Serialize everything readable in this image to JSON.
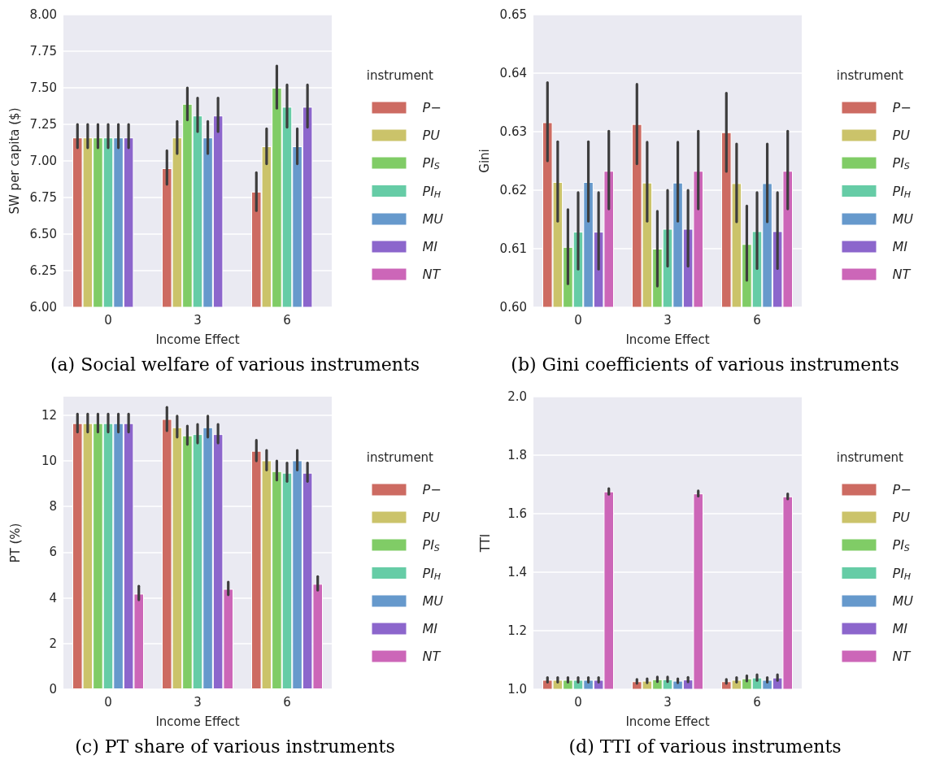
{
  "chart_data": [
    {
      "type": "bar",
      "title": "(a) Social welfare of various instruments",
      "xlabel": "Income Effect",
      "ylabel": "SW per capita ($)",
      "legend_title": "instrument",
      "legend": "right",
      "grid": "y",
      "categories": [
        "0",
        "3",
        "6"
      ],
      "ylim": [
        6,
        8
      ],
      "yticks": [
        {
          "value": 6,
          "label": "6.00"
        },
        {
          "value": 6.25,
          "label": "6.25"
        },
        {
          "value": 6.5,
          "label": "6.50"
        },
        {
          "value": 6.75,
          "label": "6.75"
        },
        {
          "value": 7,
          "label": "7.00"
        },
        {
          "value": 7.25,
          "label": "7.25"
        },
        {
          "value": 7.5,
          "label": "7.50"
        },
        {
          "value": 7.75,
          "label": "7.75"
        },
        {
          "value": 8,
          "label": "8.00"
        }
      ],
      "series": [
        {
          "name": "P−",
          "color": "#cd6b62",
          "values": [
            7.16,
            6.95,
            6.79
          ],
          "errors": [
            [
              7.09,
              7.25
            ],
            [
              6.84,
              7.07
            ],
            [
              6.66,
              6.92
            ]
          ]
        },
        {
          "name": "PU",
          "color": "#cbc36a",
          "values": [
            7.16,
            7.16,
            7.1
          ],
          "errors": [
            [
              7.09,
              7.25
            ],
            [
              7.05,
              7.27
            ],
            [
              6.98,
              7.22
            ]
          ]
        },
        {
          "name": "PI$_{S}$",
          "color": "#80cc66",
          "values": [
            7.16,
            7.39,
            7.5
          ],
          "errors": [
            [
              7.09,
              7.25
            ],
            [
              7.28,
              7.5
            ],
            [
              7.36,
              7.65
            ]
          ]
        },
        {
          "name": "PI$_{H}$",
          "color": "#66cca6",
          "values": [
            7.16,
            7.31,
            7.37
          ],
          "errors": [
            [
              7.09,
              7.25
            ],
            [
              7.2,
              7.43
            ],
            [
              7.23,
              7.52
            ]
          ]
        },
        {
          "name": "MU",
          "color": "#6699cc",
          "values": [
            7.16,
            7.16,
            7.1
          ],
          "errors": [
            [
              7.09,
              7.25
            ],
            [
              7.05,
              7.27
            ],
            [
              6.98,
              7.22
            ]
          ]
        },
        {
          "name": "MI",
          "color": "#8c66cc",
          "values": [
            7.16,
            7.31,
            7.37
          ],
          "errors": [
            [
              7.09,
              7.25
            ],
            [
              7.2,
              7.43
            ],
            [
              7.23,
              7.52
            ]
          ]
        },
        {
          "name": "NT",
          "color": "#cc66b8",
          "values": [
            null,
            null,
            null
          ],
          "errors": [
            null,
            null,
            null
          ]
        }
      ]
    },
    {
      "type": "bar",
      "title": "(b) Gini coefficients of various instruments",
      "xlabel": "Income Effect",
      "ylabel": "Gini",
      "legend_title": "instrument",
      "legend": "right",
      "grid": "y",
      "categories": [
        "0",
        "3",
        "6"
      ],
      "ylim": [
        0.6,
        0.65
      ],
      "yticks": [
        {
          "value": 0.6,
          "label": "0.60"
        },
        0.61,
        0.62,
        0.63,
        0.64,
        0.65
      ],
      "series": [
        {
          "name": "P−",
          "color": "#cd6b62",
          "values": [
            0.6316,
            0.6313,
            0.6299
          ],
          "errors": [
            [
              0.625,
              0.6384
            ],
            [
              0.6245,
              0.6381
            ],
            [
              0.6232,
              0.6366
            ]
          ]
        },
        {
          "name": "PU",
          "color": "#cbc36a",
          "values": [
            0.6214,
            0.6213,
            0.6212
          ],
          "errors": [
            [
              0.6147,
              0.6283
            ],
            [
              0.6147,
              0.6282
            ],
            [
              0.6146,
              0.6279
            ]
          ]
        },
        {
          "name": "PI$_{S}$",
          "color": "#80cc66",
          "values": [
            0.6103,
            0.61,
            0.6108
          ],
          "errors": [
            [
              0.604,
              0.6167
            ],
            [
              0.6036,
              0.6164
            ],
            [
              0.6046,
              0.6173
            ]
          ]
        },
        {
          "name": "PI$_{H}$",
          "color": "#66cca6",
          "values": [
            0.6129,
            0.6134,
            0.613
          ],
          "errors": [
            [
              0.6065,
              0.6196
            ],
            [
              0.607,
              0.62
            ],
            [
              0.6066,
              0.6196
            ]
          ]
        },
        {
          "name": "MU",
          "color": "#6699cc",
          "values": [
            0.6214,
            0.6213,
            0.6212
          ],
          "errors": [
            [
              0.6147,
              0.6283
            ],
            [
              0.6147,
              0.6282
            ],
            [
              0.6146,
              0.6279
            ]
          ]
        },
        {
          "name": "MI",
          "color": "#8c66cc",
          "values": [
            0.6129,
            0.6134,
            0.613
          ],
          "errors": [
            [
              0.6065,
              0.6196
            ],
            [
              0.607,
              0.62
            ],
            [
              0.6066,
              0.6196
            ]
          ]
        },
        {
          "name": "NT",
          "color": "#cc66b8",
          "values": [
            0.6233,
            0.6233,
            0.6233
          ],
          "errors": [
            [
              0.6168,
              0.6301
            ],
            [
              0.6168,
              0.6301
            ],
            [
              0.6168,
              0.6301
            ]
          ]
        }
      ]
    },
    {
      "type": "bar",
      "title": "(c) PT share of various instruments",
      "xlabel": "Income Effect",
      "ylabel": "PT (%)",
      "legend_title": "instrument",
      "legend": "right",
      "grid": "y",
      "categories": [
        "0",
        "3",
        "6"
      ],
      "ylim": [
        0,
        12.8
      ],
      "yticks": [
        0,
        2,
        4,
        6,
        8,
        10,
        12
      ],
      "series": [
        {
          "name": "P−",
          "color": "#cd6b62",
          "values": [
            11.64,
            11.82,
            10.43
          ],
          "errors": [
            [
              11.25,
              12.04
            ],
            [
              11.31,
              12.33
            ],
            [
              9.99,
              10.89
            ]
          ]
        },
        {
          "name": "PU",
          "color": "#cbc36a",
          "values": [
            11.64,
            11.46,
            10.01
          ],
          "errors": [
            [
              11.25,
              12.04
            ],
            [
              11.03,
              11.95
            ],
            [
              9.59,
              10.45
            ]
          ]
        },
        {
          "name": "PI$_{S}$",
          "color": "#80cc66",
          "values": [
            11.64,
            11.1,
            9.54
          ],
          "errors": [
            [
              11.25,
              12.04
            ],
            [
              10.71,
              11.52
            ],
            [
              9.15,
              9.99
            ]
          ]
        },
        {
          "name": "PI$_{H}$",
          "color": "#66cca6",
          "values": [
            11.64,
            11.16,
            9.47
          ],
          "errors": [
            [
              11.25,
              12.04
            ],
            [
              10.77,
              11.59
            ],
            [
              9.09,
              9.9
            ]
          ]
        },
        {
          "name": "MU",
          "color": "#6699cc",
          "values": [
            11.64,
            11.46,
            10.01
          ],
          "errors": [
            [
              11.25,
              12.04
            ],
            [
              11.03,
              11.95
            ],
            [
              9.59,
              10.45
            ]
          ]
        },
        {
          "name": "MI",
          "color": "#8c66cc",
          "values": [
            11.64,
            11.16,
            9.47
          ],
          "errors": [
            [
              11.25,
              12.04
            ],
            [
              10.77,
              11.59
            ],
            [
              9.09,
              9.9
            ]
          ]
        },
        {
          "name": "NT",
          "color": "#cc66b8",
          "values": [
            4.18,
            4.39,
            4.61
          ],
          "errors": [
            [
              3.91,
              4.51
            ],
            [
              4.13,
              4.69
            ],
            [
              4.33,
              4.93
            ]
          ]
        }
      ]
    },
    {
      "type": "bar",
      "title": "(d) TTI of various instruments",
      "xlabel": "Income Effect",
      "ylabel": "TTI",
      "legend_title": "instrument",
      "legend": "right",
      "grid": "y",
      "categories": [
        "0",
        "3",
        "6"
      ],
      "ylim": [
        1,
        2
      ],
      "yticks": [
        {
          "value": 1,
          "label": "1.0"
        },
        1.2,
        1.4,
        1.6,
        1.8,
        {
          "value": 2,
          "label": "2.0"
        }
      ],
      "series": [
        {
          "name": "P−",
          "color": "#cd6b62",
          "values": [
            1.032,
            1.027,
            1.027
          ],
          "errors": [
            [
              1.024,
              1.04
            ],
            [
              1.02,
              1.034
            ],
            [
              1.02,
              1.034
            ]
          ]
        },
        {
          "name": "PU",
          "color": "#cbc36a",
          "values": [
            1.032,
            1.029,
            1.032
          ],
          "errors": [
            [
              1.024,
              1.04
            ],
            [
              1.022,
              1.036
            ],
            [
              1.024,
              1.04
            ]
          ]
        },
        {
          "name": "PI$_{S}$",
          "color": "#80cc66",
          "values": [
            1.032,
            1.034,
            1.037
          ],
          "errors": [
            [
              1.024,
              1.04
            ],
            [
              1.026,
              1.042
            ],
            [
              1.028,
              1.046
            ]
          ]
        },
        {
          "name": "PI$_{H}$",
          "color": "#66cca6",
          "values": [
            1.032,
            1.034,
            1.04
          ],
          "errors": [
            [
              1.024,
              1.04
            ],
            [
              1.026,
              1.042
            ],
            [
              1.03,
              1.05
            ]
          ]
        },
        {
          "name": "MU",
          "color": "#6699cc",
          "values": [
            1.032,
            1.029,
            1.032
          ],
          "errors": [
            [
              1.024,
              1.04
            ],
            [
              1.022,
              1.036
            ],
            [
              1.024,
              1.04
            ]
          ]
        },
        {
          "name": "MI",
          "color": "#8c66cc",
          "values": [
            1.032,
            1.033,
            1.04
          ],
          "errors": [
            [
              1.024,
              1.04
            ],
            [
              1.025,
              1.041
            ],
            [
              1.03,
              1.05
            ]
          ]
        },
        {
          "name": "NT",
          "color": "#cc66b8",
          "values": [
            1.676,
            1.669,
            1.659
          ],
          "errors": [
            [
              1.666,
              1.686
            ],
            [
              1.66,
              1.678
            ],
            [
              1.65,
              1.668
            ]
          ]
        }
      ]
    }
  ]
}
